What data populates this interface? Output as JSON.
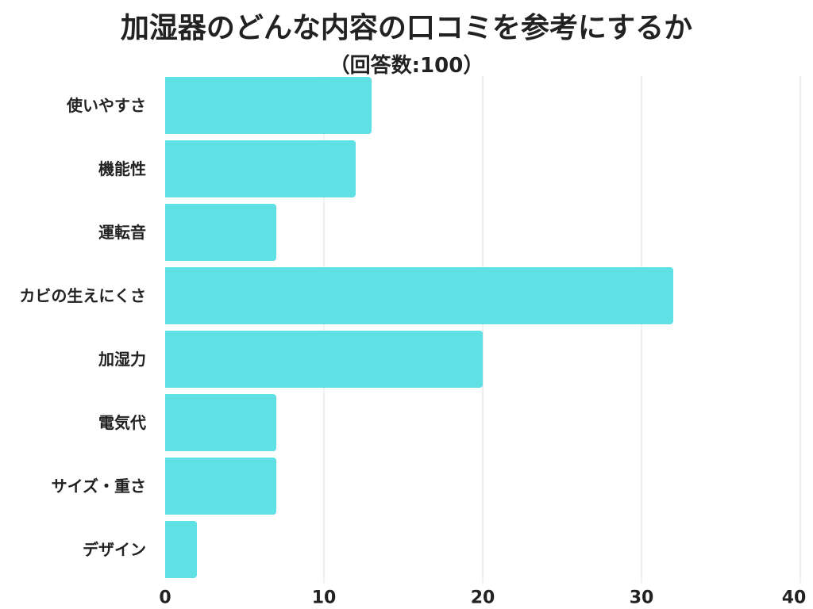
{
  "chart_data": {
    "type": "bar",
    "orientation": "horizontal",
    "title": "加湿器のどんな内容の口コミを参考にするか",
    "subtitle": "（回答数:100）",
    "categories": [
      "使いやすさ",
      "機能性",
      "運転音",
      "カビの生えにくさ",
      "加湿力",
      "電気代",
      "サイズ・重さ",
      "デザイン"
    ],
    "values": [
      13,
      12,
      7,
      32,
      20,
      7,
      7,
      2
    ],
    "xlim": [
      0,
      40
    ],
    "xticks": [
      0,
      10,
      20,
      30,
      40
    ],
    "xlabel": "",
    "ylabel": "",
    "grid": true,
    "bar_color": "#5ee0e4"
  }
}
